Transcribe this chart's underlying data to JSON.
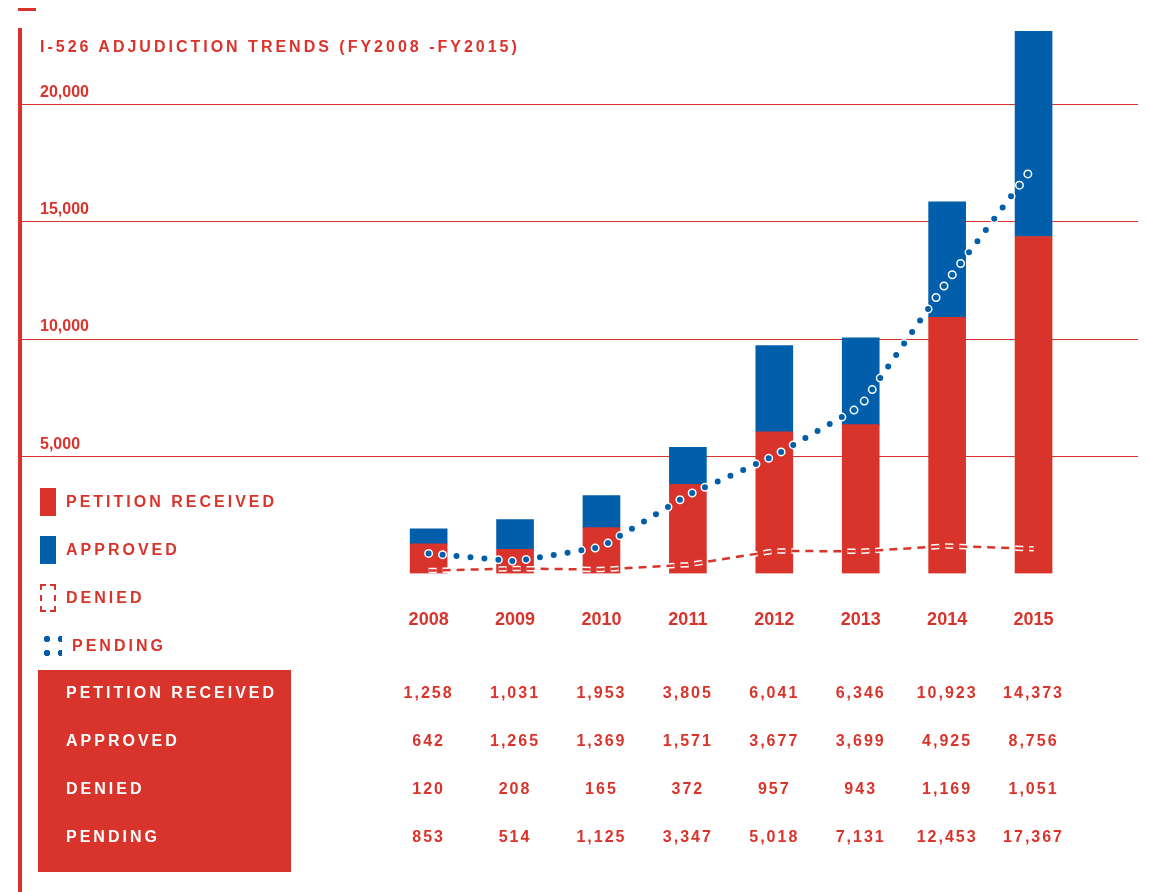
{
  "chart_data": {
    "type": "bar",
    "title": "I-526 ADJUDICTION TRENDS (FY2008 -FY2015)",
    "categories": [
      "2008",
      "2009",
      "2010",
      "2011",
      "2012",
      "2013",
      "2014",
      "2015"
    ],
    "stacked": true,
    "series": [
      {
        "name": "PETITION RECEIVED",
        "color": "#d9342b",
        "values": [
          1258,
          1031,
          1953,
          3805,
          6041,
          6346,
          10923,
          14373
        ],
        "value_labels": [
          "1,258",
          "1,031",
          "1,953",
          "3,805",
          "6,041",
          "6,346",
          "10,923",
          "14,373"
        ]
      },
      {
        "name": "APPROVED",
        "color": "#005eab",
        "values": [
          642,
          1265,
          1369,
          1571,
          3677,
          3699,
          4925,
          8756
        ],
        "value_labels": [
          "642",
          "1,265",
          "1,369",
          "1,571",
          "3,677",
          "3,699",
          "4,925",
          "8,756"
        ]
      },
      {
        "name": "DENIED",
        "type": "line",
        "color": "#d9342b",
        "line_style": "dashed",
        "marker": "none",
        "values": [
          120,
          208,
          165,
          372,
          957,
          943,
          1169,
          1051
        ],
        "value_labels": [
          "120",
          "208",
          "165",
          "372",
          "957",
          "943",
          "1,169",
          "1,051"
        ]
      },
      {
        "name": "PENDING",
        "type": "line",
        "color": "#005eab",
        "line_style": "dotted",
        "marker": "none",
        "values": [
          853,
          514,
          1125,
          3347,
          5018,
          7131,
          12453,
          17367
        ],
        "value_labels": [
          "853",
          "514",
          "1,125",
          "3,347",
          "5,018",
          "7,131",
          "12,453",
          "17,367"
        ]
      }
    ],
    "ylim": [
      0,
      23200
    ],
    "yticks": [
      {
        "value": 5000,
        "label": "5,000"
      },
      {
        "value": 10000,
        "label": "10,000"
      },
      {
        "value": 15000,
        "label": "15,000"
      },
      {
        "value": 20000,
        "label": "20,000"
      }
    ],
    "grid": "y",
    "legend": "left"
  }
}
